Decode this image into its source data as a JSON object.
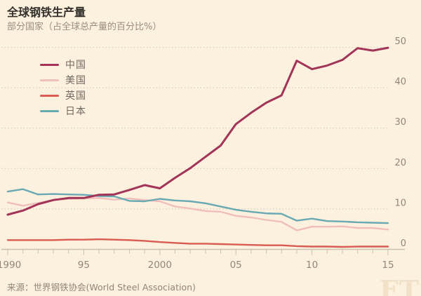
{
  "header": {
    "title": "全球钢铁生产量",
    "subtitle": "部分国家（占全球总产量的百分比%）"
  },
  "chart_data": {
    "type": "line",
    "title": "全球钢铁生产量",
    "subtitle": "部分国家（占全球总产量的百分比%）",
    "xlabel": "",
    "ylabel": "占全球总产量的百分比%",
    "x": [
      1990,
      1991,
      1992,
      1993,
      1994,
      1995,
      1996,
      1997,
      1998,
      1999,
      2000,
      2001,
      2002,
      2003,
      2004,
      2005,
      2006,
      2007,
      2008,
      2009,
      2010,
      2011,
      2012,
      2013,
      2014,
      2015
    ],
    "series": [
      {
        "name": "中国",
        "color": "#a13457",
        "width": 3,
        "values": [
          8.6,
          9.6,
          11.2,
          12.2,
          12.7,
          12.7,
          13.5,
          13.6,
          14.7,
          15.9,
          15.1,
          17.7,
          20.1,
          22.9,
          25.7,
          31.0,
          33.8,
          36.3,
          38.1,
          46.7,
          44.6,
          45.5,
          46.9,
          49.8,
          49.2,
          49.9
        ]
      },
      {
        "name": "美国",
        "color": "#f0bfbc",
        "width": 2.4,
        "values": [
          11.6,
          10.8,
          11.5,
          12.2,
          12.5,
          12.6,
          12.7,
          12.3,
          12.6,
          12.2,
          11.9,
          10.6,
          10.1,
          9.5,
          9.3,
          8.3,
          7.9,
          7.3,
          6.8,
          4.7,
          5.6,
          5.6,
          5.7,
          5.3,
          5.3,
          4.9
        ]
      },
      {
        "name": "英国",
        "color": "#d95c52",
        "width": 2.4,
        "values": [
          2.3,
          2.3,
          2.3,
          2.3,
          2.4,
          2.4,
          2.5,
          2.4,
          2.3,
          2.1,
          1.8,
          1.6,
          1.4,
          1.4,
          1.3,
          1.2,
          1.1,
          1.0,
          1.0,
          0.8,
          0.7,
          0.7,
          0.6,
          0.7,
          0.7,
          0.7
        ]
      },
      {
        "name": "日本",
        "color": "#68a9b4",
        "width": 2.4,
        "values": [
          14.3,
          14.9,
          13.6,
          13.7,
          13.6,
          13.5,
          13.2,
          13.1,
          12.0,
          11.9,
          12.5,
          12.1,
          11.9,
          11.4,
          10.6,
          9.8,
          9.3,
          8.9,
          8.8,
          7.1,
          7.6,
          7.0,
          6.9,
          6.7,
          6.6,
          6.5
        ]
      }
    ],
    "xlim": [
      1990,
      2015
    ],
    "ylim": [
      0,
      50
    ],
    "yticks": [
      0,
      10,
      20,
      30,
      40,
      50
    ],
    "xtick_labels": [
      {
        "x": 1990,
        "label": "1990"
      },
      {
        "x": 1995,
        "label": "95"
      },
      {
        "x": 2000,
        "label": "2000"
      },
      {
        "x": 2005,
        "label": "05"
      },
      {
        "x": 2010,
        "label": "10"
      },
      {
        "x": 2015,
        "label": "15"
      }
    ],
    "grid": "horizontal-dotted",
    "legend_position": "top-left",
    "unit": "%"
  },
  "footer": {
    "source": "来源：世界钢铁协会(World Steel Association)",
    "brand": "FT"
  },
  "colors": {
    "background": "#fcf0df",
    "title": "#33302c",
    "subtitle": "#969083",
    "axis_text": "#8e887b",
    "gridline": "#d8cebd",
    "axis_line": "#c9c0ae",
    "legend_text": "#6f6a61",
    "watermark": "#f2e1c9"
  }
}
